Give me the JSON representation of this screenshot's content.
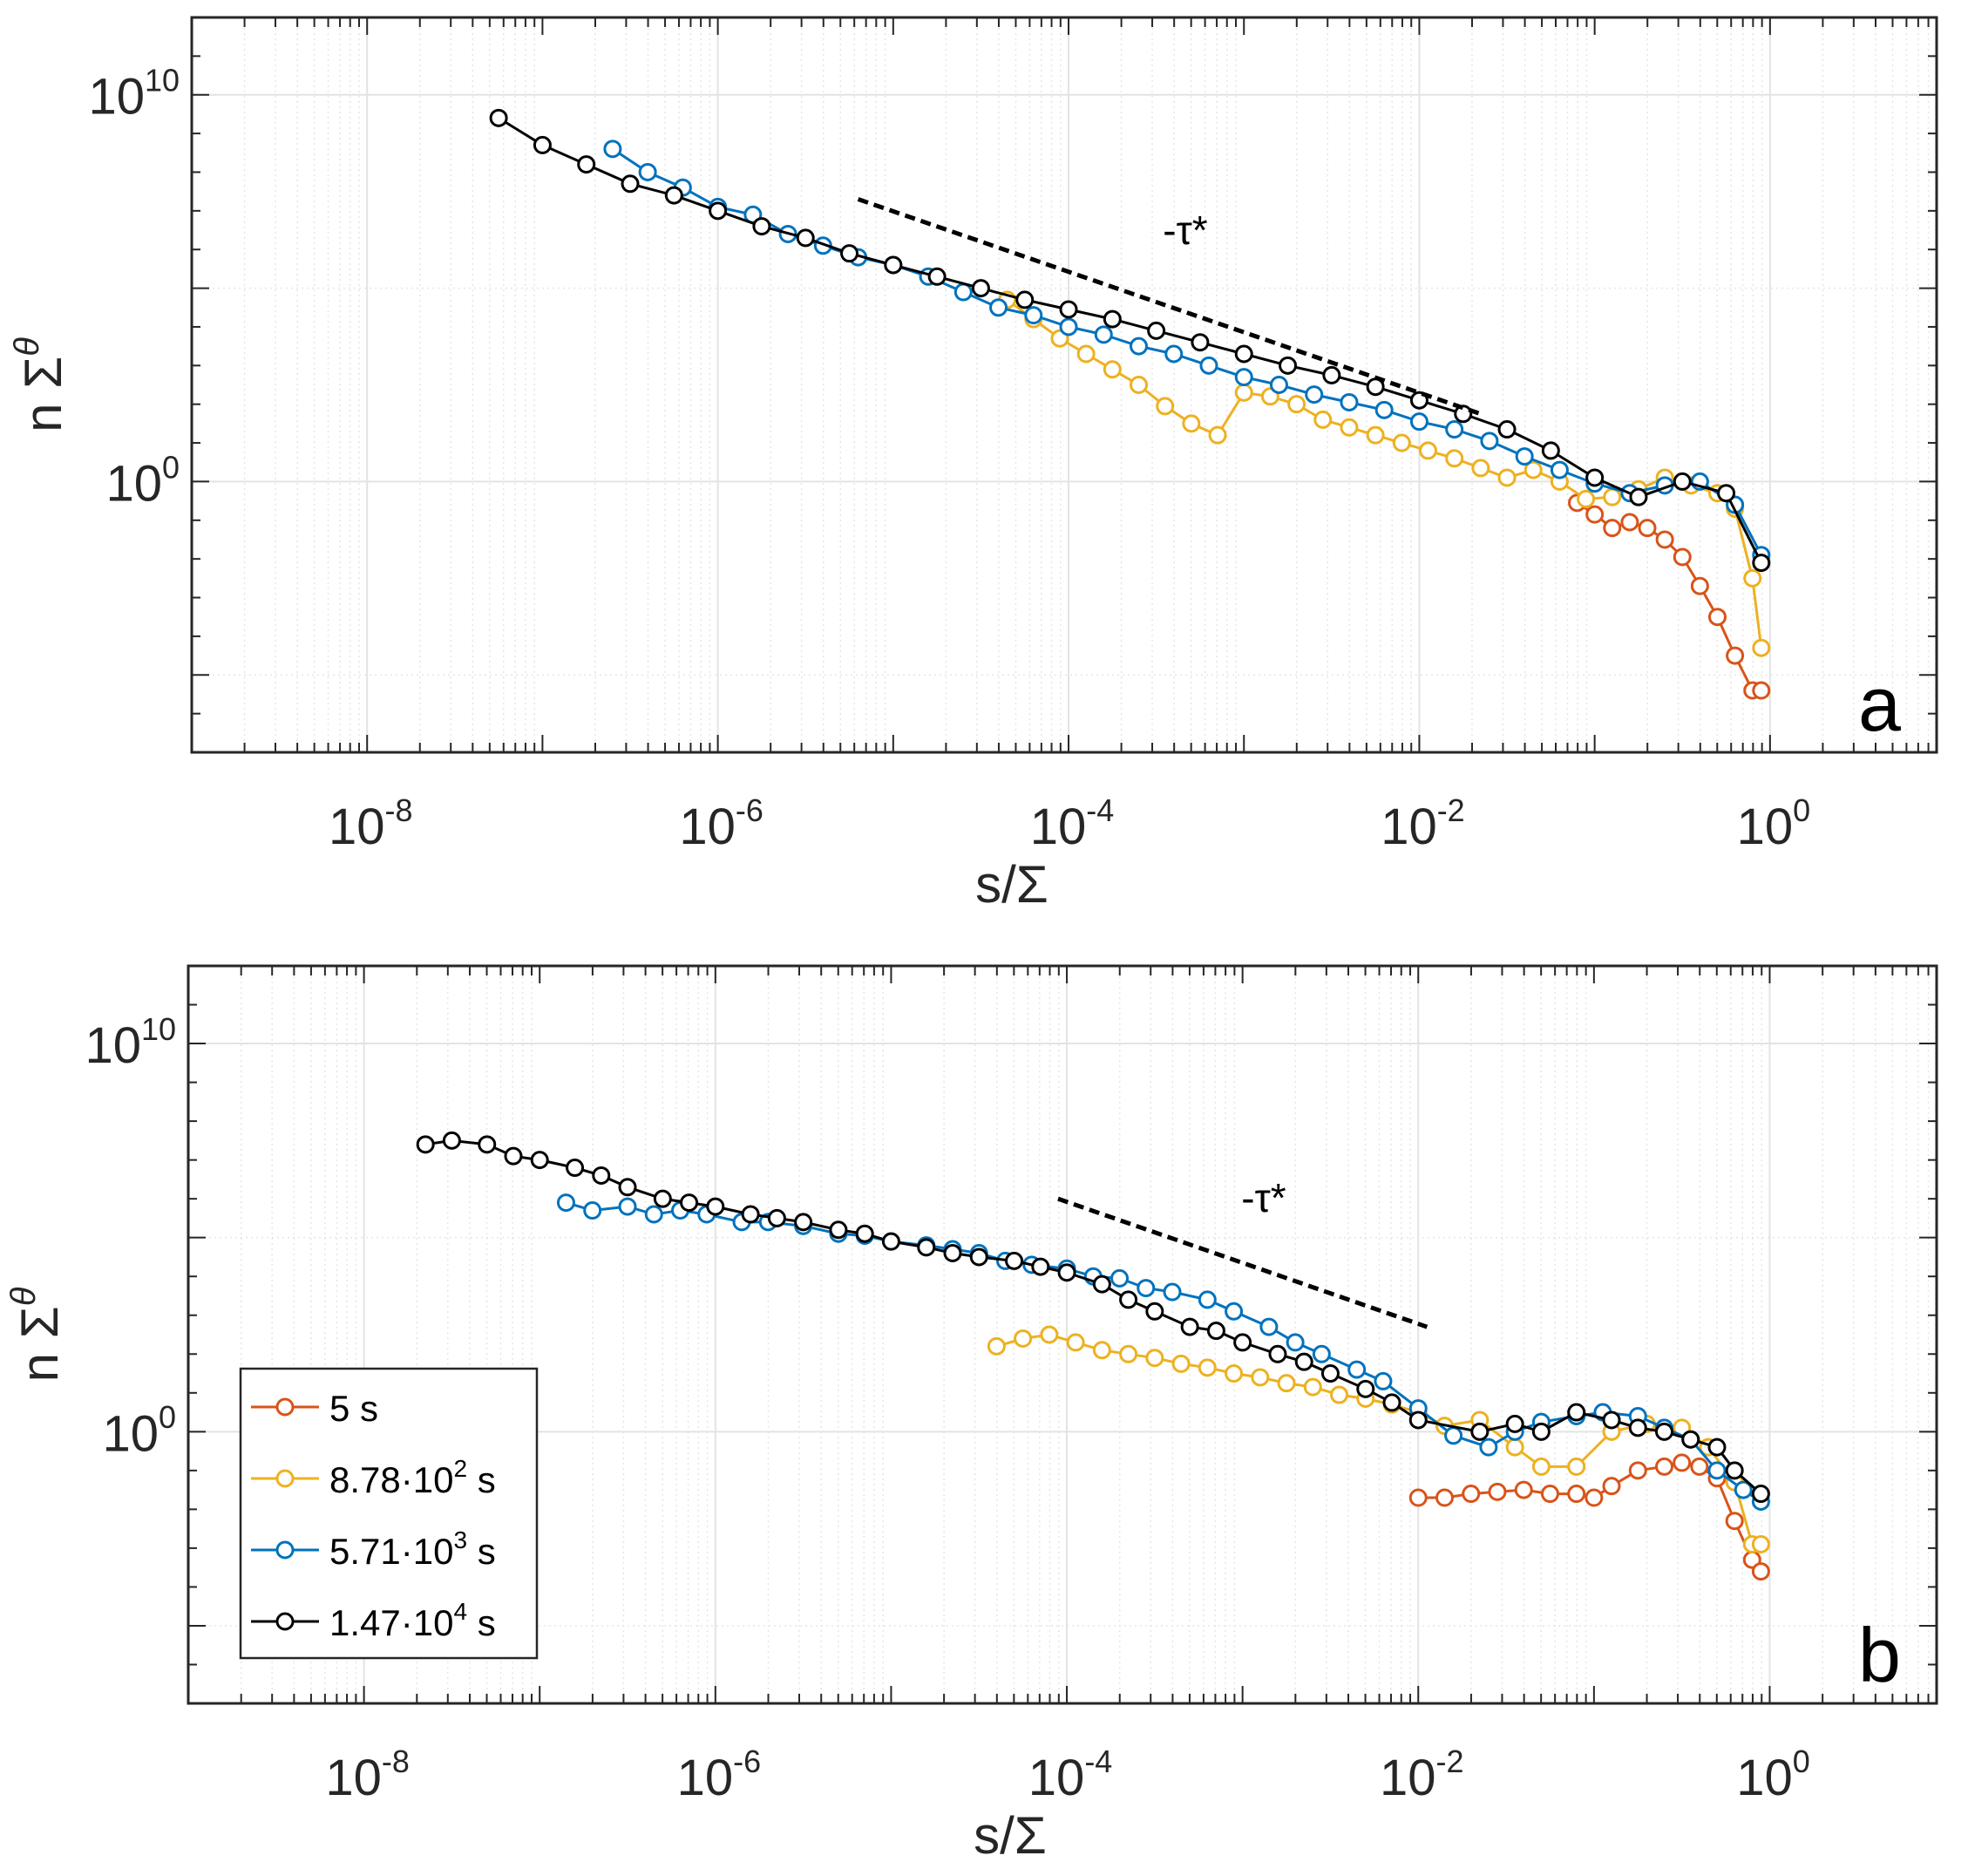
{
  "colors": {
    "5 s": "#D95319",
    "8.78·10^2 s": "#EDB120",
    "5.71·10^3 s": "#0072BD",
    "1.47·10^4 s": "#000000",
    "grid": "#e3e3e3",
    "axis": "#262626"
  },
  "legend": {
    "placement": "lower-left of panel b",
    "entries": [
      {
        "base": "5 s",
        "exp": "",
        "suffix": ""
      },
      {
        "base": "8.78·10",
        "exp": "2",
        "suffix": " s"
      },
      {
        "base": "5.71·10",
        "exp": "3",
        "suffix": " s"
      },
      {
        "base": "1.47·10",
        "exp": "4",
        "suffix": " s"
      }
    ]
  },
  "chart_data": [
    {
      "type": "line",
      "panel_label": "a",
      "xlabel": "s/Σ",
      "ylabel": {
        "base": "n Σ",
        "sup": "θ"
      },
      "xscale": "log",
      "yscale": "log",
      "xlim_exp": [
        -9.0,
        0.95
      ],
      "ylim_exp": [
        -7,
        12
      ],
      "x_tick_labels": [
        {
          "base": "10",
          "exp": "-8"
        },
        {
          "base": "10",
          "exp": "-6"
        },
        {
          "base": "10",
          "exp": "-4"
        },
        {
          "base": "10",
          "exp": "-2"
        },
        {
          "base": "10",
          "exp": "0"
        }
      ],
      "y_tick_labels": [
        {
          "base": "10",
          "exp": "0"
        },
        {
          "base": "10",
          "exp": "10"
        }
      ],
      "grid": true,
      "annotation": {
        "text": "-τ*",
        "line_from_log10": [
          -5.2,
          7.3
        ],
        "line_to_log10": [
          -1.65,
          1.75
        ]
      },
      "series": [
        {
          "name": "5 s",
          "log10_x": [
            -1.1,
            -1.0,
            -0.9,
            -0.8,
            -0.7,
            -0.6,
            -0.5,
            -0.4,
            -0.3,
            -0.2,
            -0.1,
            -0.05
          ],
          "log10_y": [
            -0.55,
            -0.85,
            -1.2,
            -1.05,
            -1.2,
            -1.5,
            -1.95,
            -2.7,
            -3.5,
            -4.5,
            -5.4,
            -5.4
          ]
        },
        {
          "name": "8.78·10^2 s",
          "log10_x": [
            -4.35,
            -4.2,
            -4.05,
            -3.9,
            -3.75,
            -3.6,
            -3.45,
            -3.3,
            -3.15,
            -3.0,
            -2.85,
            -2.7,
            -2.55,
            -2.4,
            -2.25,
            -2.1,
            -1.95,
            -1.8,
            -1.65,
            -1.5,
            -1.35,
            -1.2,
            -1.05,
            -0.9,
            -0.75,
            -0.6,
            -0.45,
            -0.3,
            -0.2,
            -0.1,
            -0.05
          ],
          "log10_y": [
            4.7,
            4.2,
            3.7,
            3.3,
            2.9,
            2.5,
            1.95,
            1.5,
            1.2,
            2.3,
            2.2,
            2.0,
            1.6,
            1.4,
            1.2,
            1.0,
            0.8,
            0.6,
            0.35,
            0.1,
            0.3,
            0.0,
            -0.45,
            -0.4,
            -0.2,
            0.1,
            -0.1,
            -0.3,
            -0.7,
            -2.5,
            -4.3
          ]
        },
        {
          "name": "5.71·10^3 s",
          "log10_x": [
            -6.6,
            -6.4,
            -6.2,
            -6.0,
            -5.8,
            -5.6,
            -5.4,
            -5.2,
            -5.0,
            -4.8,
            -4.6,
            -4.4,
            -4.2,
            -4.0,
            -3.8,
            -3.6,
            -3.4,
            -3.2,
            -3.0,
            -2.8,
            -2.6,
            -2.4,
            -2.2,
            -2.0,
            -1.8,
            -1.6,
            -1.4,
            -1.2,
            -1.0,
            -0.8,
            -0.6,
            -0.4,
            -0.2,
            -0.05
          ],
          "log10_y": [
            8.6,
            8.0,
            7.6,
            7.1,
            6.9,
            6.4,
            6.1,
            5.8,
            5.6,
            5.3,
            4.9,
            4.5,
            4.3,
            4.0,
            3.8,
            3.5,
            3.3,
            3.0,
            2.7,
            2.5,
            2.25,
            2.05,
            1.85,
            1.55,
            1.35,
            1.05,
            0.65,
            0.3,
            -0.05,
            -0.3,
            -0.1,
            0.0,
            -0.6,
            -1.9
          ]
        },
        {
          "name": "1.47·10^4 s",
          "log10_x": [
            -7.25,
            -7.0,
            -6.75,
            -6.5,
            -6.25,
            -6.0,
            -5.75,
            -5.5,
            -5.25,
            -5.0,
            -4.75,
            -4.5,
            -4.25,
            -4.0,
            -3.75,
            -3.5,
            -3.25,
            -3.0,
            -2.75,
            -2.5,
            -2.25,
            -2.0,
            -1.75,
            -1.5,
            -1.25,
            -1.0,
            -0.75,
            -0.5,
            -0.25,
            -0.05
          ],
          "log10_y": [
            9.4,
            8.7,
            8.2,
            7.7,
            7.4,
            7.0,
            6.6,
            6.3,
            5.9,
            5.6,
            5.3,
            5.0,
            4.7,
            4.45,
            4.2,
            3.9,
            3.6,
            3.3,
            3.0,
            2.75,
            2.45,
            2.1,
            1.75,
            1.35,
            0.8,
            0.1,
            -0.4,
            0.0,
            -0.3,
            -2.1
          ]
        }
      ]
    },
    {
      "type": "line",
      "panel_label": "b",
      "xlabel": "s/Σ",
      "ylabel": {
        "base": "n Σ",
        "sup": "θ"
      },
      "xscale": "log",
      "yscale": "log",
      "xlim_exp": [
        -9.0,
        0.95
      ],
      "ylim_exp": [
        -7,
        12
      ],
      "x_tick_labels": [
        {
          "base": "10",
          "exp": "-8"
        },
        {
          "base": "10",
          "exp": "-6"
        },
        {
          "base": "10",
          "exp": "-4"
        },
        {
          "base": "10",
          "exp": "-2"
        },
        {
          "base": "10",
          "exp": "0"
        }
      ],
      "y_tick_labels": [
        {
          "base": "10",
          "exp": "0"
        },
        {
          "base": "10",
          "exp": "10"
        }
      ],
      "grid": true,
      "annotation": {
        "text": "-τ*",
        "line_from_log10": [
          -4.05,
          6.0
        ],
        "line_to_log10": [
          -1.95,
          2.7
        ]
      },
      "series": [
        {
          "name": "5 s",
          "log10_x": [
            -2.0,
            -1.85,
            -1.7,
            -1.55,
            -1.4,
            -1.25,
            -1.1,
            -1.0,
            -0.9,
            -0.75,
            -0.6,
            -0.5,
            -0.4,
            -0.3,
            -0.2,
            -0.1,
            -0.05
          ],
          "log10_y": [
            -1.7,
            -1.7,
            -1.6,
            -1.55,
            -1.5,
            -1.6,
            -1.6,
            -1.7,
            -1.4,
            -1.0,
            -0.9,
            -0.8,
            -0.9,
            -1.2,
            -2.3,
            -3.3,
            -3.6
          ]
        },
        {
          "name": "8.78·10^2 s",
          "log10_x": [
            -4.4,
            -4.25,
            -4.1,
            -3.95,
            -3.8,
            -3.65,
            -3.5,
            -3.35,
            -3.2,
            -3.05,
            -2.9,
            -2.75,
            -2.6,
            -2.45,
            -2.3,
            -2.15,
            -2.0,
            -1.85,
            -1.65,
            -1.45,
            -1.3,
            -1.1,
            -0.9,
            -0.7,
            -0.5,
            -0.35,
            -0.2,
            -0.1,
            -0.05
          ],
          "log10_y": [
            2.2,
            2.4,
            2.5,
            2.3,
            2.1,
            2.0,
            1.9,
            1.75,
            1.65,
            1.5,
            1.4,
            1.25,
            1.15,
            0.95,
            0.85,
            0.7,
            0.5,
            0.15,
            0.3,
            -0.4,
            -0.9,
            -0.9,
            0.0,
            0.2,
            0.1,
            -0.4,
            -1.3,
            -2.9,
            -2.9
          ]
        },
        {
          "name": "5.71·10^3 s",
          "log10_x": [
            -6.85,
            -6.7,
            -6.5,
            -6.35,
            -6.2,
            -6.05,
            -5.85,
            -5.7,
            -5.5,
            -5.3,
            -5.15,
            -5.0,
            -4.8,
            -4.65,
            -4.5,
            -4.35,
            -4.2,
            -4.0,
            -3.85,
            -3.7,
            -3.55,
            -3.4,
            -3.2,
            -3.05,
            -2.85,
            -2.7,
            -2.55,
            -2.35,
            -2.2,
            -2.0,
            -1.8,
            -1.6,
            -1.45,
            -1.3,
            -1.1,
            -0.95,
            -0.75,
            -0.6,
            -0.45,
            -0.3,
            -0.15,
            -0.05
          ],
          "log10_y": [
            5.9,
            5.7,
            5.8,
            5.6,
            5.7,
            5.6,
            5.4,
            5.4,
            5.3,
            5.1,
            5.05,
            4.9,
            4.8,
            4.7,
            4.6,
            4.4,
            4.3,
            4.2,
            4.0,
            3.95,
            3.7,
            3.6,
            3.4,
            3.1,
            2.7,
            2.3,
            2.0,
            1.6,
            1.3,
            0.6,
            -0.1,
            -0.4,
            0.0,
            0.25,
            0.4,
            0.5,
            0.4,
            0.1,
            -0.2,
            -1.0,
            -1.5,
            -1.8
          ]
        },
        {
          "name": "1.47·10^4 s",
          "log10_x": [
            -7.65,
            -7.5,
            -7.3,
            -7.15,
            -7.0,
            -6.8,
            -6.65,
            -6.5,
            -6.3,
            -6.15,
            -6.0,
            -5.8,
            -5.65,
            -5.5,
            -5.3,
            -5.15,
            -5.0,
            -4.8,
            -4.65,
            -4.5,
            -4.3,
            -4.15,
            -4.0,
            -3.8,
            -3.65,
            -3.5,
            -3.3,
            -3.15,
            -3.0,
            -2.8,
            -2.65,
            -2.5,
            -2.3,
            -2.15,
            -2.0,
            -1.65,
            -1.45,
            -1.3,
            -1.1,
            -0.9,
            -0.75,
            -0.6,
            -0.45,
            -0.3,
            -0.2,
            -0.05
          ],
          "log10_y": [
            7.4,
            7.5,
            7.4,
            7.1,
            7.0,
            6.8,
            6.6,
            6.3,
            6.0,
            5.9,
            5.8,
            5.6,
            5.5,
            5.4,
            5.2,
            5.1,
            4.9,
            4.75,
            4.6,
            4.5,
            4.4,
            4.25,
            4.1,
            3.8,
            3.4,
            3.1,
            2.7,
            2.6,
            2.3,
            2.0,
            1.8,
            1.5,
            1.1,
            0.75,
            0.3,
            0.0,
            0.2,
            0.0,
            0.5,
            0.3,
            0.1,
            0.0,
            -0.2,
            -0.4,
            -1.0,
            -1.6
          ]
        }
      ]
    }
  ]
}
